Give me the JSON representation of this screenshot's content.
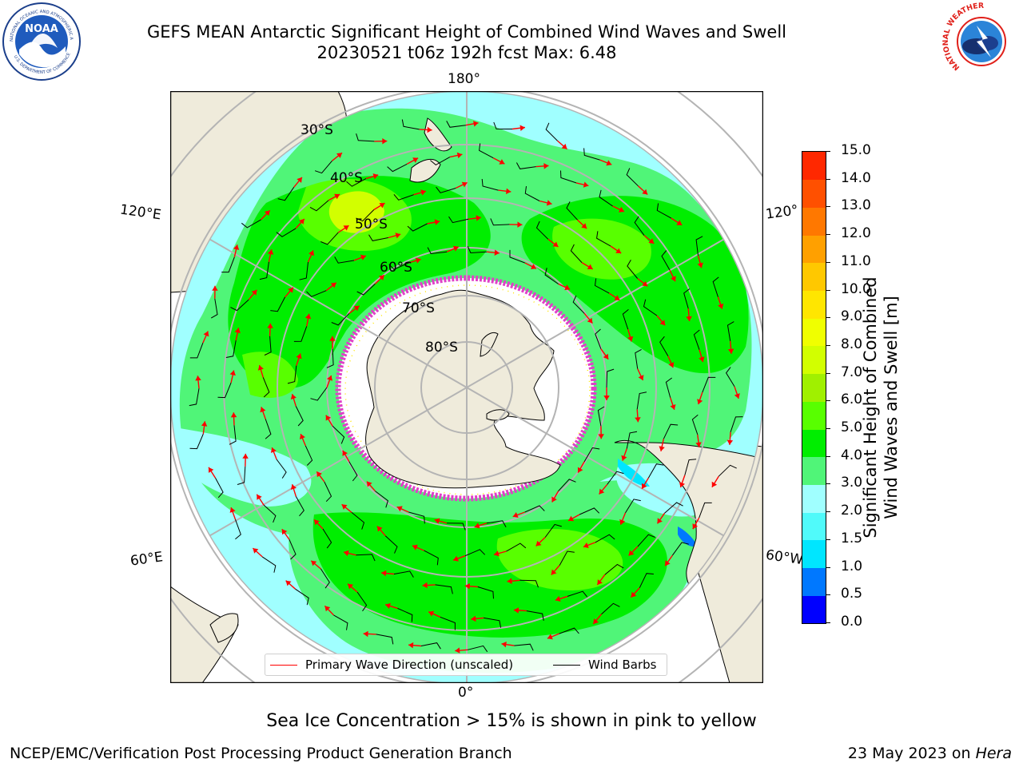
{
  "header": {
    "title_line1": "GEFS MEAN Antarctic Significant Height of Combined Wind Waves and Swell",
    "title_line2": "20230521 t06z 192h fcst   Max: 6.48"
  },
  "logos": {
    "noaa_text": "NOAA",
    "noaa_ring_top": "NATIONAL OCEANIC AND ATMOSPHERIC ADMINISTRATION",
    "noaa_ring_bottom": "U.S. DEPARTMENT OF COMMERCE",
    "nws_ring": "NATIONAL WEATHER SERVICE"
  },
  "map": {
    "longitude_labels": {
      "top": "180°",
      "bottom": "0°",
      "left_upper": "120°E",
      "left_lower": "60°E",
      "right_upper": "120°",
      "right_lower": "60°W"
    },
    "latitude_labels": [
      "30°S",
      "40°S",
      "50°S",
      "60°S",
      "70°S",
      "80°S"
    ],
    "colors": {
      "land": "#efebdb",
      "sea_ice": "#ffffff",
      "ice_edge": "#e040c8",
      "gridlines": "#b4b4b4",
      "wave_arrow": "#ff0000",
      "wind_barb": "#000000"
    }
  },
  "legend": {
    "primary_wave": "Primary Wave Direction (unscaled)",
    "wind_barbs": "Wind Barbs"
  },
  "colorbar": {
    "title_line1": "Significant Height of Combined",
    "title_line2": "Wind Waves and Swell [m]",
    "ticks": [
      "15.0",
      "14.0",
      "13.0",
      "12.0",
      "11.0",
      "10.0",
      "9.0",
      "8.0",
      "7.0",
      "6.0",
      "5.0",
      "4.0",
      "3.0",
      "2.0",
      "1.5",
      "1.0",
      "0.5",
      "0.0"
    ],
    "colors_bottom_to_top": [
      "#0000ff",
      "#0078ff",
      "#00e6ff",
      "#50fafa",
      "#a0ffff",
      "#50f578",
      "#00ee00",
      "#58ff00",
      "#a0f000",
      "#d2ff00",
      "#f0ff00",
      "#ffe600",
      "#ffc800",
      "#ffa000",
      "#ff7800",
      "#ff5000",
      "#ff2800"
    ]
  },
  "note": "Sea Ice Concentration > 15% is shown in pink to yellow",
  "footer": {
    "left": "NCEP/EMC/Verification Post Processing Product Generation Branch",
    "right_prefix": "23 May 2023 on ",
    "right_machine": "Hera"
  }
}
